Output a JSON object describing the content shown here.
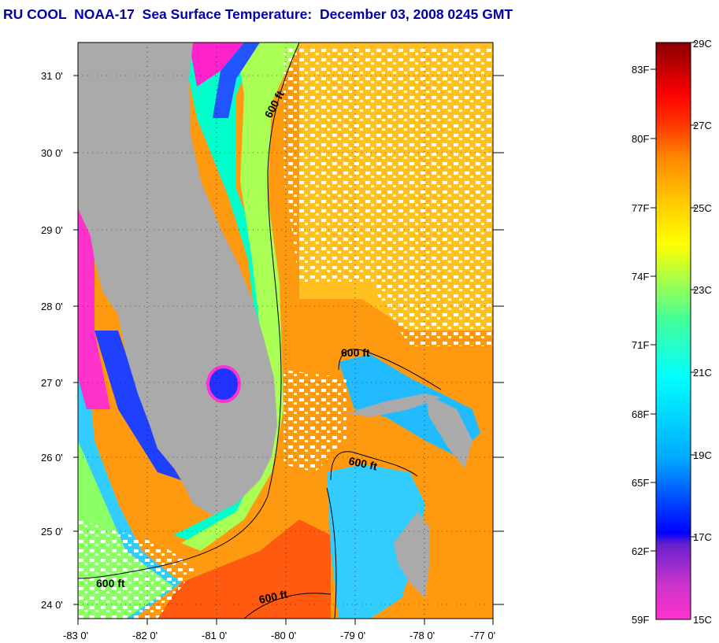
{
  "title": "RU COOL  NOAA-17  Sea Surface Temperature:  December 03, 2008 0245 GMT",
  "map": {
    "lat_labels": [
      "31 0'",
      "30 0'",
      "29 0'",
      "28 0'",
      "27 0'",
      "26 0'",
      "25 0'",
      "24 0'"
    ],
    "lon_labels": [
      "-83 0'",
      "-82 0'",
      "-81 0'",
      "-80 0'",
      "-79 0'",
      "-78 0'",
      "-77 0'"
    ],
    "contour_label": "600 ft",
    "colors": {
      "land": "#aaaaaa",
      "cloud": "#ffffff",
      "cold": "#ff33cc",
      "warm": "#ff8800"
    }
  },
  "colorbar": {
    "fahrenheit_labels": [
      "83F",
      "80F",
      "77F",
      "74F",
      "71F",
      "68F",
      "65F",
      "62F",
      "59F"
    ],
    "celsius_labels": [
      "29C",
      "27C",
      "25C",
      "23C",
      "21C",
      "19C",
      "17C",
      "15C"
    ]
  }
}
